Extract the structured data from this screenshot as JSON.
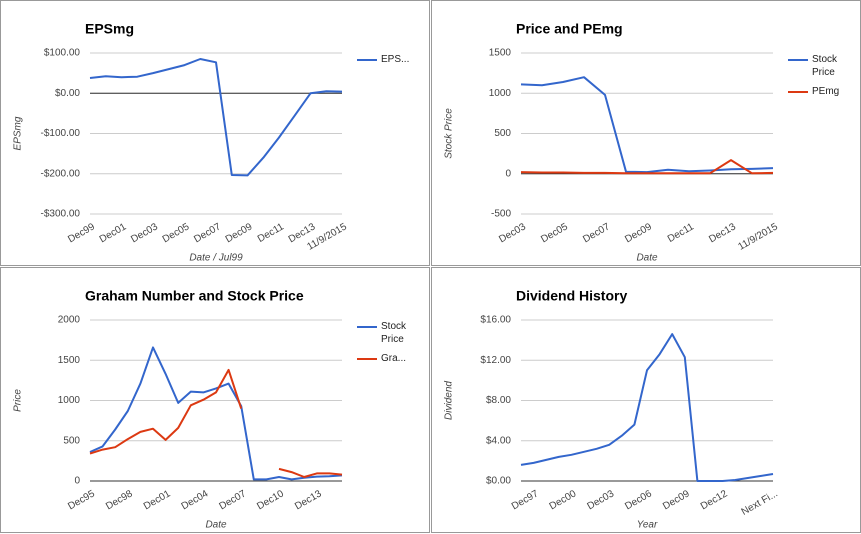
{
  "chart_data": [
    {
      "type": "line",
      "title": "EPSmg",
      "x_label": "Date / Jul99",
      "y_label": "EPSmg",
      "categories": [
        "Dec99",
        null,
        "Dec01",
        null,
        "Dec03",
        null,
        "Dec05",
        null,
        "Dec07",
        null,
        "Dec09",
        null,
        "Dec11",
        null,
        "Dec13",
        null,
        "11/9/2015"
      ],
      "series": [
        {
          "name": "EPS...",
          "color": "#3366cc",
          "values": [
            38,
            42,
            40,
            41,
            50,
            60,
            70,
            85,
            77,
            -203,
            -204,
            -160,
            -110,
            -55,
            0,
            5,
            4
          ]
        }
      ],
      "ylim": [
        -300,
        100
      ],
      "yticks": [
        {
          "value": 100,
          "label": "$100.00"
        },
        {
          "value": 0,
          "label": "$0.00"
        },
        {
          "value": -100,
          "label": "-$100.00"
        },
        {
          "value": -200,
          "label": "-$200.00"
        },
        {
          "value": -300,
          "label": "-$300.00"
        }
      ],
      "grid": true,
      "legend": "right"
    },
    {
      "type": "line",
      "title": "Price and PEmg",
      "x_label": "Date",
      "y_label": "Stock Price",
      "categories": [
        "Dec03",
        null,
        "Dec05",
        null,
        "Dec07",
        null,
        "Dec09",
        null,
        "Dec11",
        null,
        "Dec13",
        null,
        "11/9/2015"
      ],
      "series": [
        {
          "name": "Stock Price",
          "color": "#3366cc",
          "values": [
            1110,
            1100,
            1140,
            1200,
            980,
            25,
            20,
            50,
            30,
            40,
            55,
            60,
            70
          ]
        },
        {
          "name": "PEmg",
          "color": "#dc3912",
          "values": [
            20,
            15,
            15,
            10,
            10,
            5,
            5,
            5,
            5,
            5,
            170,
            5,
            10
          ]
        }
      ],
      "ylim": [
        -500,
        1500
      ],
      "yticks": [
        1500,
        1000,
        500,
        0,
        -500
      ],
      "grid": true,
      "legend": "right"
    },
    {
      "type": "line",
      "title": "Graham Number and Stock Price",
      "x_label": "Date",
      "y_label": "Price",
      "categories": [
        "Dec95",
        null,
        null,
        "Dec98",
        null,
        null,
        "Dec01",
        null,
        null,
        "Dec04",
        null,
        null,
        "Dec07",
        null,
        null,
        "Dec10",
        null,
        null,
        "Dec13",
        null,
        null
      ],
      "series": [
        {
          "name": "Stock Price",
          "color": "#3366cc",
          "values": [
            360,
            430,
            640,
            870,
            1210,
            1660,
            1330,
            970,
            1110,
            1100,
            1150,
            1210,
            930,
            20,
            20,
            50,
            20,
            40,
            55,
            60,
            70
          ]
        },
        {
          "name": "Gra...",
          "color": "#dc3912",
          "values": [
            340,
            390,
            420,
            520,
            610,
            650,
            510,
            660,
            940,
            1010,
            1100,
            1380,
            900,
            null,
            null,
            150,
            110,
            50,
            95,
            95,
            80
          ]
        }
      ],
      "ylim": [
        0,
        2000
      ],
      "yticks": [
        2000,
        1500,
        1000,
        500,
        0
      ],
      "grid": true,
      "legend": "right"
    },
    {
      "type": "line",
      "title": "Dividend History",
      "x_label": "Year",
      "y_label": "Dividend",
      "categories": [
        null,
        "Dec97",
        null,
        null,
        "Dec00",
        null,
        null,
        "Dec03",
        null,
        null,
        "Dec06",
        null,
        null,
        "Dec09",
        null,
        null,
        "Dec12",
        null,
        null,
        null,
        "Next Fi..."
      ],
      "series": [
        {
          "color": "#3366cc",
          "values": [
            1.6,
            1.8,
            2.1,
            2.4,
            2.6,
            2.9,
            3.2,
            3.6,
            4.5,
            5.6,
            11,
            12.6,
            14.6,
            12.3,
            0,
            0,
            0,
            0.1,
            0.3,
            0.5,
            0.7
          ]
        }
      ],
      "ylim": [
        0,
        16
      ],
      "yticks": [
        {
          "value": 16,
          "label": "$16.00"
        },
        {
          "value": 12,
          "label": "$12.00"
        },
        {
          "value": 8,
          "label": "$8.00"
        },
        {
          "value": 4,
          "label": "$4.00"
        },
        {
          "value": 0,
          "label": "$0.00"
        }
      ],
      "grid": true,
      "legend": false
    }
  ]
}
